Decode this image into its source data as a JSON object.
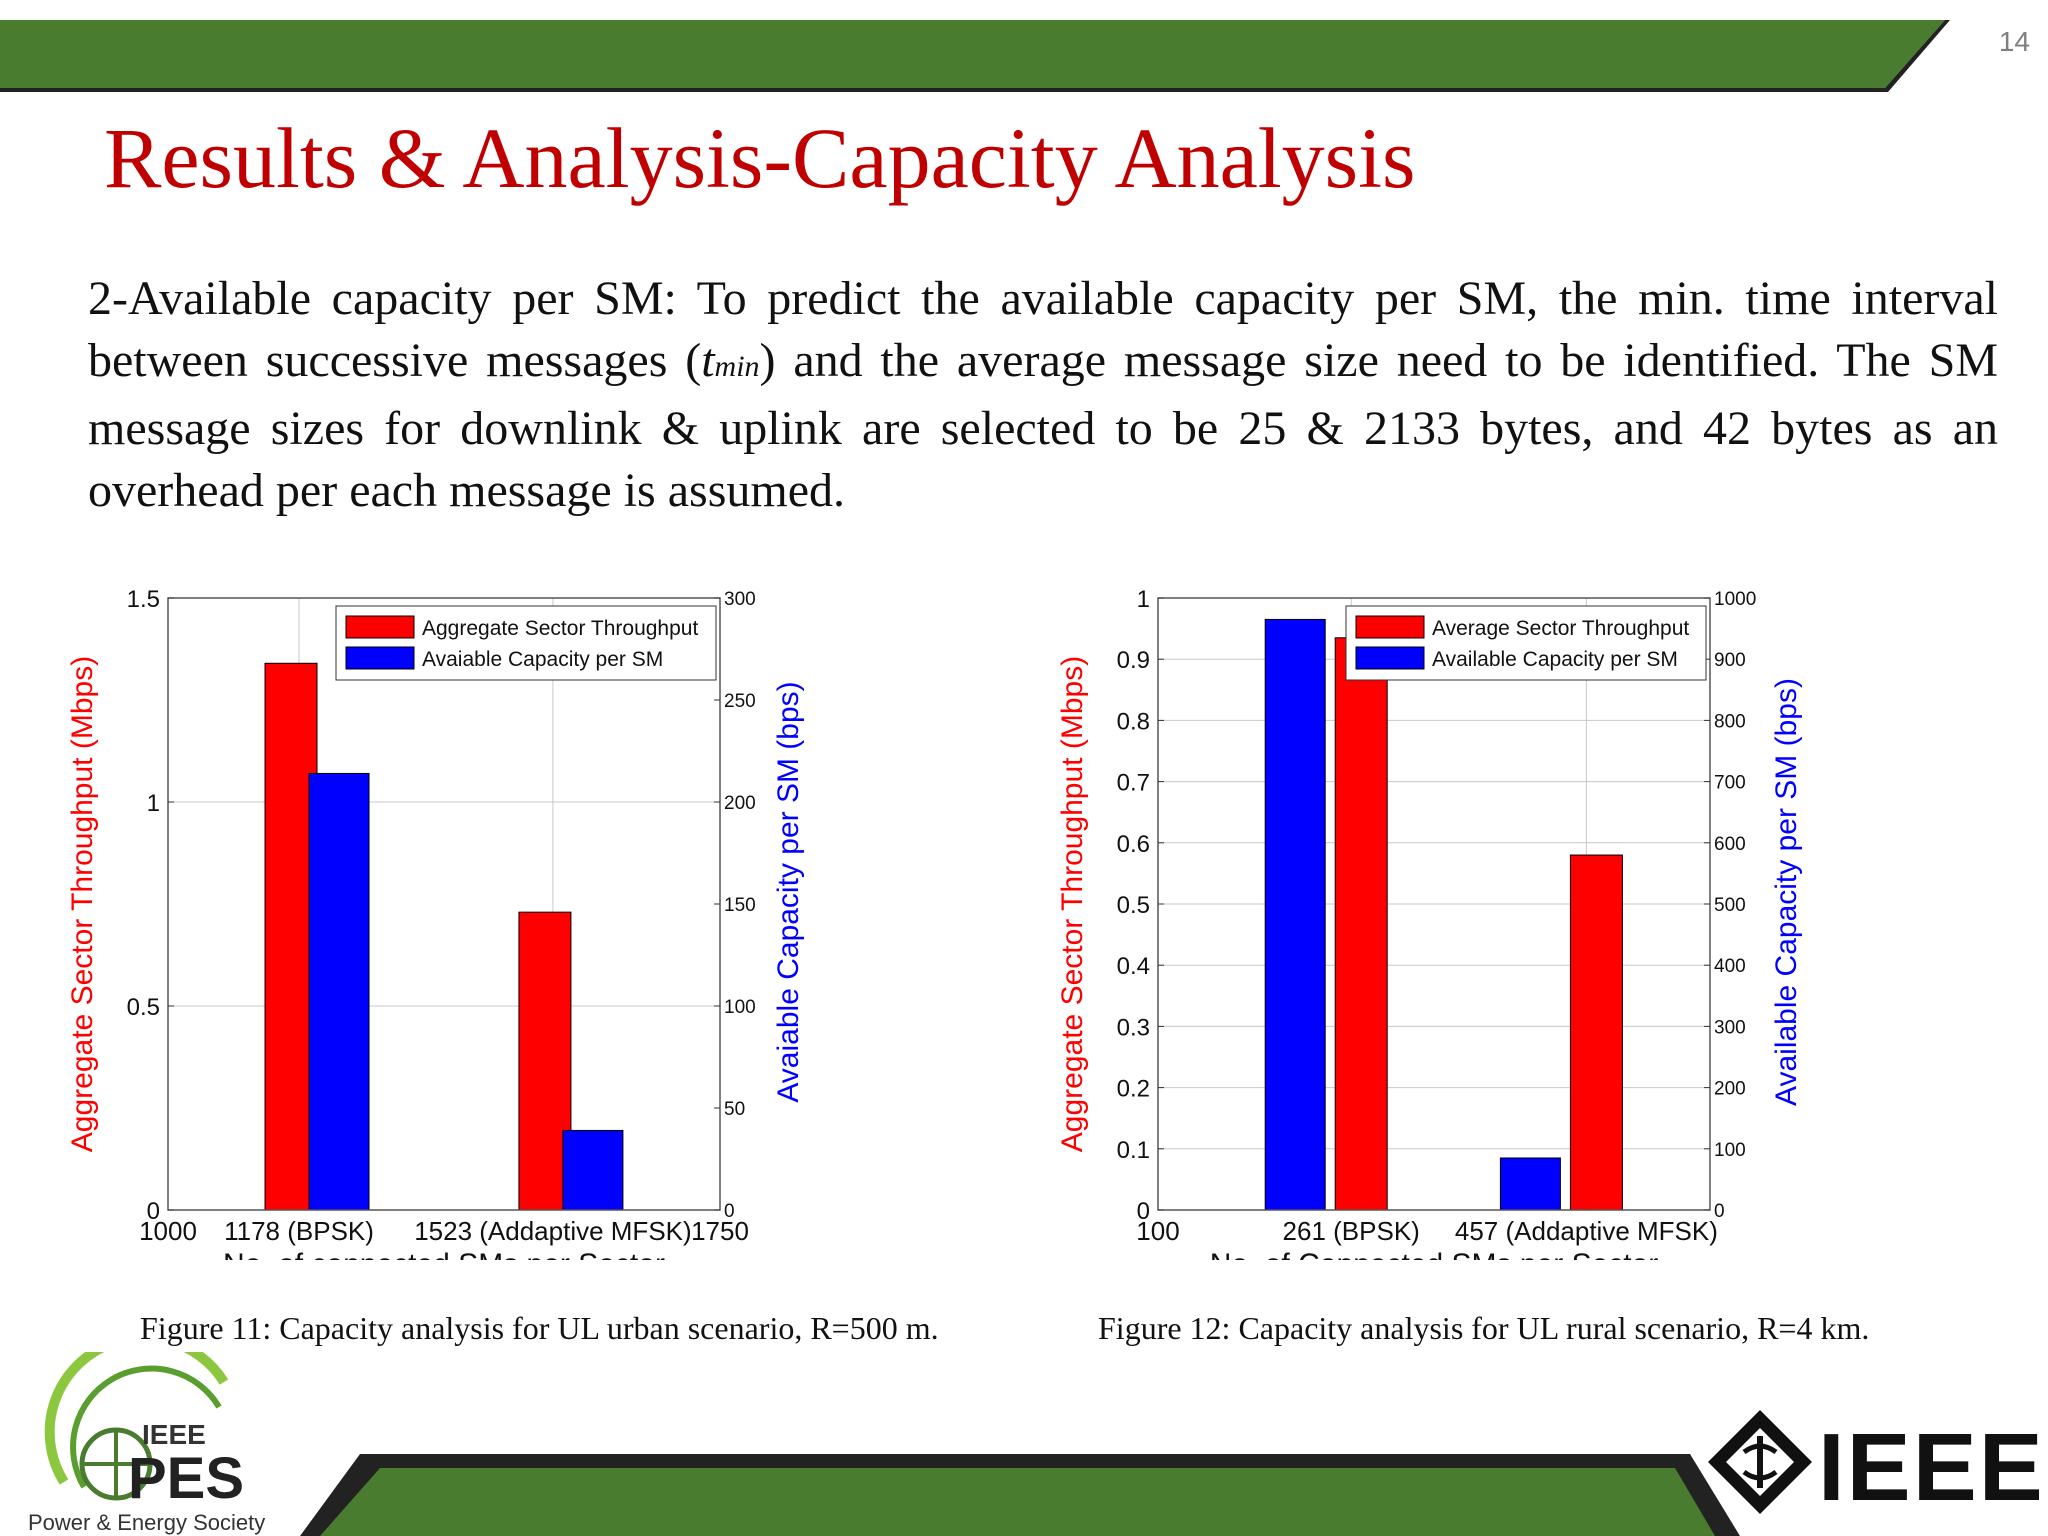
{
  "page_number": "14",
  "title": "Results & Analysis-Capacity Analysis",
  "body": {
    "part1": "2-Available capacity per SM: To predict the available capacity per SM, the min. time interval between successive messages (",
    "symbol": "t",
    "symbol_sub": "min",
    "part2": ") and the average message size need to be identified. The SM message sizes for downlink & uplink are selected to be 25 & 2133 bytes, and 42 bytes as an overhead per each message is assumed."
  },
  "colors": {
    "green_band": "#4a7c2f",
    "title_red": "#c00000",
    "series_red": "#ff0000",
    "series_blue": "#0000ff"
  },
  "chart_data": [
    {
      "type": "bar",
      "caption": "Figure 11: Capacity analysis for UL urban scenario, R=500 m.",
      "xlabel": "No. of connected SMs per Sector",
      "ylabel": "Aggregate Sector Throughput (Mbps)",
      "ylabel2": "Avaiable Capacity per SM (bps)",
      "x_ticks": [
        "1000",
        "1178 (BPSK)",
        "1523 (Addaptive MFSK)",
        "1750"
      ],
      "x_tick_values": [
        1000,
        1178,
        1523,
        1750
      ],
      "xlim": [
        1000,
        1750
      ],
      "ylim": [
        0,
        1.5
      ],
      "y_ticks": [
        "0",
        "0.5",
        "1",
        "1.5"
      ],
      "y_tick_values": [
        0,
        0.5,
        1,
        1.5
      ],
      "y2lim": [
        0,
        300
      ],
      "y2_ticks": [
        "0",
        "50",
        "100",
        "150",
        "200",
        "250",
        "300"
      ],
      "y2_tick_values": [
        0,
        50,
        100,
        150,
        200,
        250,
        300
      ],
      "grid": true,
      "legend_position": "top-right",
      "series": [
        {
          "name": "Aggregate Sector Throughput",
          "axis": "left",
          "color": "#ff0000",
          "x": [
            1178,
            1523
          ],
          "values": [
            1.34,
            0.73
          ]
        },
        {
          "name": "Avaiable Capacity per SM",
          "axis": "right",
          "color": "#0000ff",
          "x": [
            1178,
            1523
          ],
          "values": [
            214,
            39
          ]
        }
      ]
    },
    {
      "type": "bar",
      "caption": "Figure 12: Capacity analysis for UL rural scenario, R=4 km.",
      "xlabel": "No. of Connected SMs per Sector",
      "ylabel": "Aggregate Sector Throughput (Mbps)",
      "ylabel2": "Available Capacity per SM (bps)",
      "x_ticks": [
        "100",
        "261 (BPSK)",
        "457 (Addaptive MFSK)"
      ],
      "x_tick_values": [
        100,
        261,
        457
      ],
      "xlim": [
        100,
        560
      ],
      "ylim": [
        0,
        1
      ],
      "y_ticks": [
        "0",
        "0.1",
        "0.2",
        "0.3",
        "0.4",
        "0.5",
        "0.6",
        "0.7",
        "0.8",
        "0.9",
        "1"
      ],
      "y_tick_values": [
        0,
        0.1,
        0.2,
        0.3,
        0.4,
        0.5,
        0.6,
        0.7,
        0.8,
        0.9,
        1
      ],
      "y2lim": [
        0,
        1000
      ],
      "y2_ticks": [
        "0",
        "100",
        "200",
        "300",
        "400",
        "500",
        "600",
        "700",
        "800",
        "900",
        "1000"
      ],
      "y2_tick_values": [
        0,
        100,
        200,
        300,
        400,
        500,
        600,
        700,
        800,
        900,
        1000
      ],
      "grid": true,
      "legend_position": "top-right",
      "series": [
        {
          "name": "Average Sector Throughput",
          "axis": "left",
          "color": "#ff0000",
          "x": [
            261,
            457
          ],
          "values": [
            0.935,
            0.58
          ]
        },
        {
          "name": "Available Capacity per SM",
          "axis": "right",
          "color": "#0000ff",
          "x": [
            261,
            457
          ],
          "values": [
            965,
            85
          ]
        }
      ]
    }
  ],
  "logos": {
    "pes_line1": "IEEE",
    "pes_line2": "PES",
    "pes_tagline": "Power & Energy Society",
    "ieee_wordmark": "IEEE"
  }
}
